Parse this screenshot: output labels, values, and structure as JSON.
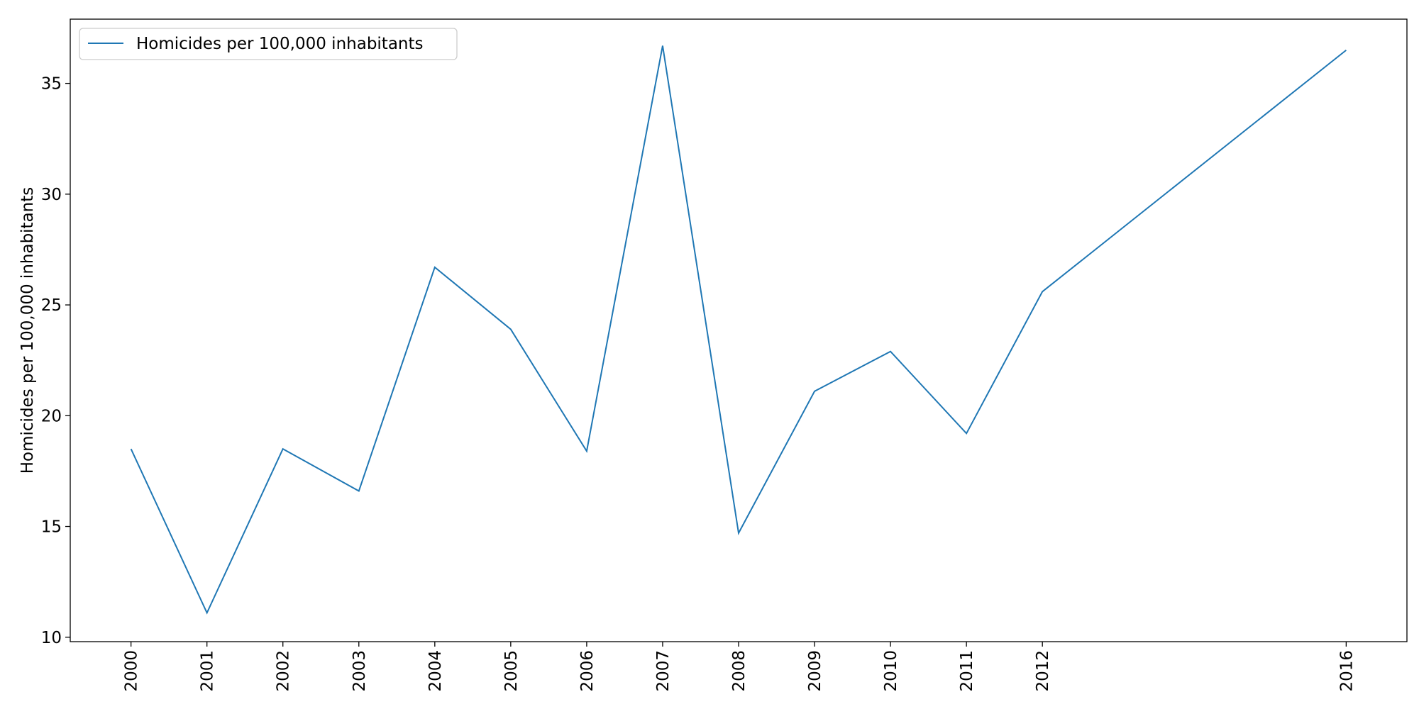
{
  "chart_data": {
    "type": "line",
    "title": "",
    "xlabel": "",
    "ylabel": "Homicides per 100,000 inhabitants",
    "x": [
      2000,
      2001,
      2002,
      2003,
      2004,
      2005,
      2006,
      2007,
      2008,
      2009,
      2010,
      2011,
      2012,
      2016
    ],
    "x_tick_labels": [
      "2000",
      "2001",
      "2002",
      "2003",
      "2004",
      "2005",
      "2006",
      "2007",
      "2008",
      "2009",
      "2010",
      "2011",
      "2012",
      "2016"
    ],
    "series": [
      {
        "name": "Homicides per 100,000 inhabitants",
        "color": "#1f77b4",
        "values": [
          18.5,
          11.1,
          18.5,
          16.6,
          26.7,
          23.9,
          18.4,
          36.7,
          14.7,
          21.1,
          22.9,
          19.2,
          25.6,
          36.5
        ]
      }
    ],
    "xlim": [
      1999.2,
      2016.8
    ],
    "ylim": [
      9.8,
      37.9
    ],
    "y_ticks": [
      10,
      15,
      20,
      25,
      30,
      35
    ],
    "y_tick_labels": [
      "10",
      "15",
      "20",
      "25",
      "30",
      "35"
    ],
    "grid": false,
    "legend": "top-left"
  }
}
